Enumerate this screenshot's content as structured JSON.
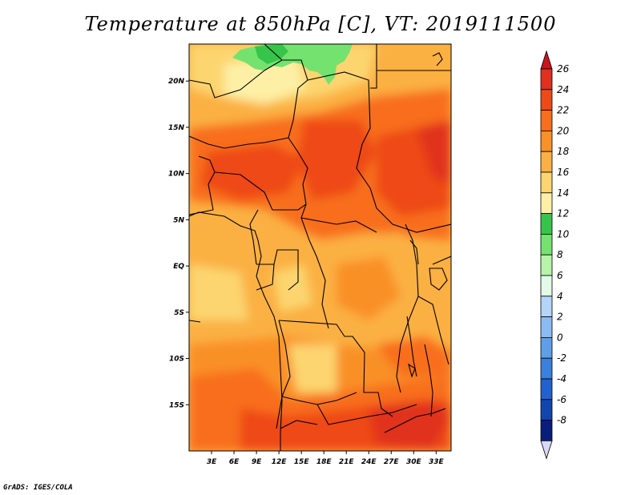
{
  "title": "Temperature at 850hPa [C], VT: 2019111500",
  "credit": "GrADS: IGES/COLA",
  "map": {
    "lon_range": [
      0,
      35
    ],
    "lat_range": [
      -20,
      24
    ],
    "x_ticks": [
      "3E",
      "6E",
      "9E",
      "12E",
      "15E",
      "18E",
      "21E",
      "24E",
      "27E",
      "30E",
      "33E"
    ],
    "y_ticks": [
      "20N",
      "15N",
      "10N",
      "5N",
      "EQ",
      "5S",
      "10S",
      "15S"
    ]
  },
  "colorbar": {
    "labels": [
      "26",
      "24",
      "22",
      "20",
      "18",
      "16",
      "14",
      "12",
      "10",
      "8",
      "6",
      "4",
      "2",
      "0",
      "-2",
      "-4",
      "-6",
      "-8"
    ],
    "colors": {
      "26": "#e0301e",
      "24": "#ee4a18",
      "22": "#f86e1c",
      "20": "#f99028",
      "18": "#fbb043",
      "16": "#fcd570",
      "14": "#fdf0a6",
      "12": "#37c44a",
      "10": "#74e26f",
      "8": "#b6f4a9",
      "6": "#e1fbe8",
      "4": "#b4d4f8",
      "2": "#8bbbf2",
      "0": "#5f9fe8",
      "-2": "#3b80dc",
      "-4": "#2262cf",
      "-6": "#1245b0",
      "-8": "#081e7c"
    },
    "above_color": "#c8141e",
    "below_color": "#d8d8f8"
  }
}
